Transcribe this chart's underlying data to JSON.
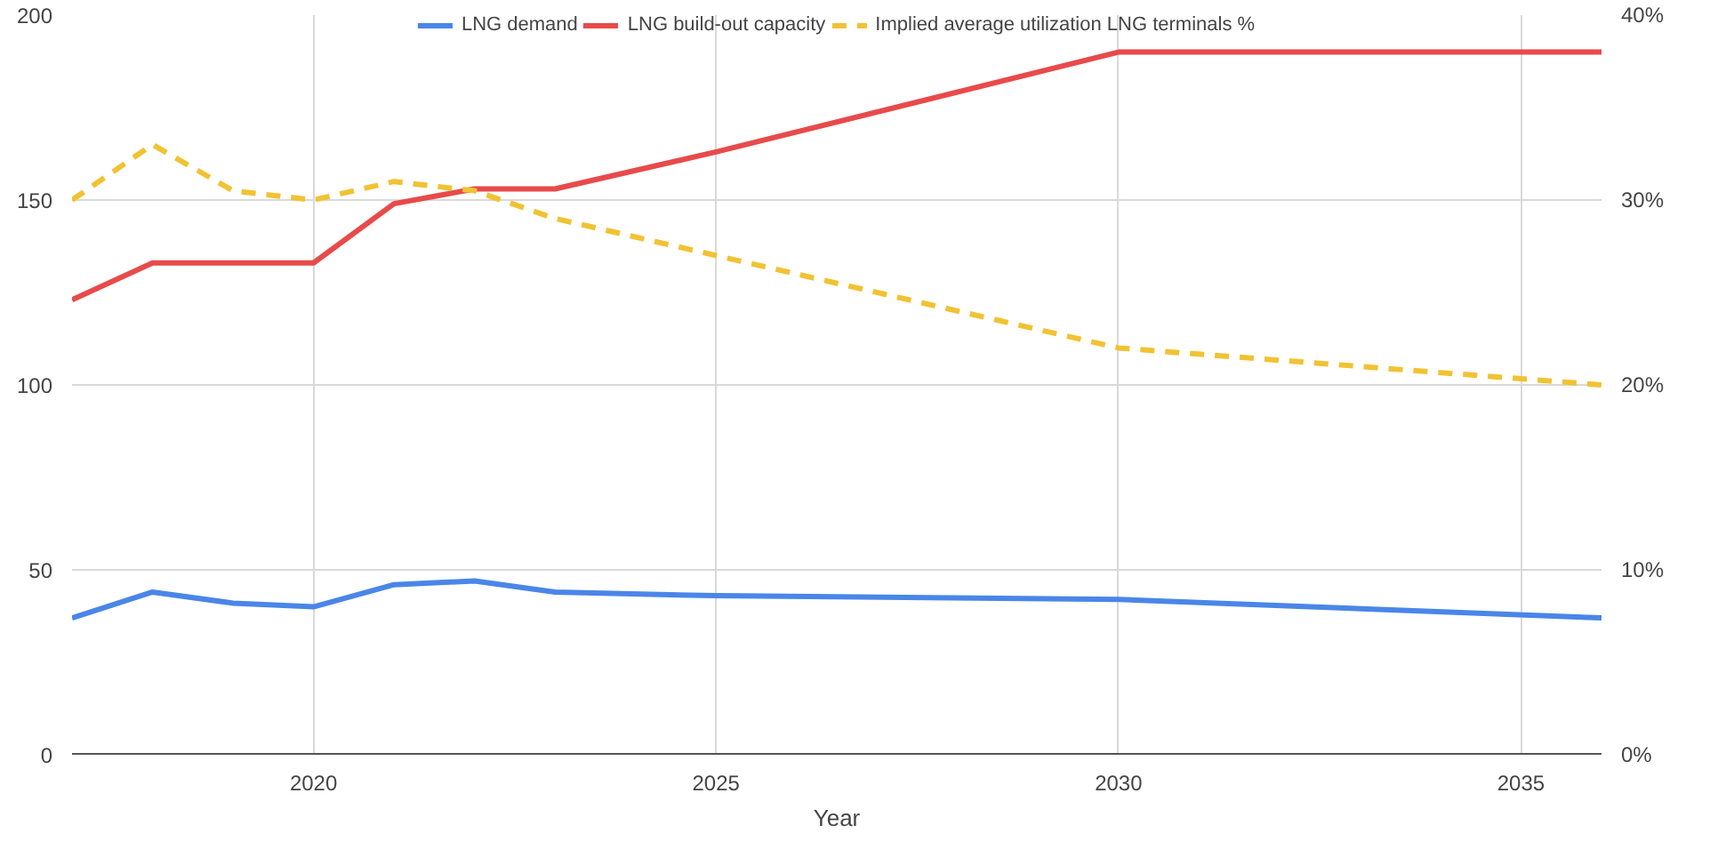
{
  "chart_data": {
    "type": "line",
    "xlabel": "Year",
    "x": [
      2017,
      2018,
      2019,
      2020,
      2021,
      2022,
      2023,
      2025,
      2030,
      2036
    ],
    "xlim": [
      2017,
      2036
    ],
    "xticks": [
      2020,
      2025,
      2030,
      2035
    ],
    "ylim": [
      0,
      200
    ],
    "yticks": [
      0,
      50,
      100,
      150,
      200
    ],
    "y2lim": [
      0,
      40
    ],
    "y2ticks": [
      {
        "value": 0,
        "label": "0%"
      },
      {
        "value": 10,
        "label": "10%"
      },
      {
        "value": 20,
        "label": "20%"
      },
      {
        "value": 30,
        "label": "30%"
      },
      {
        "value": 40,
        "label": "40%"
      }
    ],
    "grid": true,
    "legend": "top",
    "line_style": "solid",
    "series": [
      {
        "name": "LNG demand",
        "color": "#4a86e8",
        "values": [
          37,
          44,
          41,
          40,
          46,
          47,
          44,
          43,
          42,
          37
        ]
      },
      {
        "name": "LNG build-out capacity",
        "color": "#e84a4a",
        "values": [
          123,
          133,
          133,
          133,
          149,
          153,
          153,
          163,
          190,
          190
        ]
      },
      {
        "name": "Implied average utilization LNG terminals %",
        "color": "#f1c232",
        "axis": "y2",
        "line_style": "dashed",
        "values": [
          30,
          33,
          30.5,
          30,
          31,
          30.5,
          29,
          27,
          22,
          20
        ]
      }
    ]
  }
}
